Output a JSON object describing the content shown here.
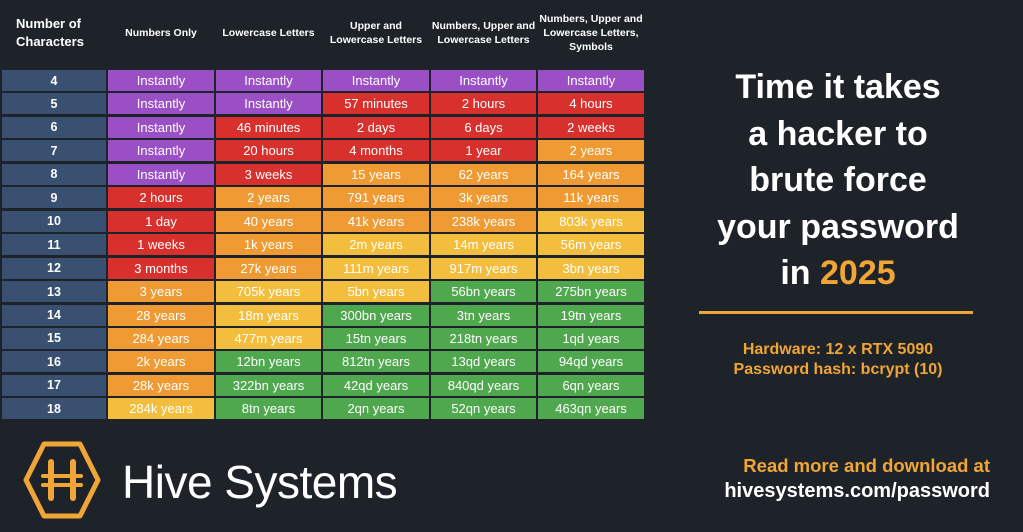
{
  "colors": {
    "purple": "#9b4fc4",
    "red": "#d8312d",
    "orange": "#ef9a32",
    "yellow": "#f3be3d",
    "green": "#4fa84e",
    "length_column": "#3a5070",
    "background": "#1e2329",
    "accent": "#f0a536"
  },
  "chart_data": {
    "type": "table",
    "columns": [
      "Number of Characters",
      "Numbers Only",
      "Lowercase Letters",
      "Upper and Lowercase Letters",
      "Numbers, Upper and Lowercase Letters",
      "Numbers, Upper and Lowercase Letters, Symbols"
    ],
    "rows": [
      {
        "length": "4",
        "values": [
          "Instantly",
          "Instantly",
          "Instantly",
          "Instantly",
          "Instantly"
        ],
        "colors": [
          "purple",
          "purple",
          "purple",
          "purple",
          "purple"
        ]
      },
      {
        "length": "5",
        "values": [
          "Instantly",
          "Instantly",
          "57 minutes",
          "2 hours",
          "4 hours"
        ],
        "colors": [
          "purple",
          "purple",
          "red",
          "red",
          "red"
        ]
      },
      {
        "length": "6",
        "values": [
          "Instantly",
          "46 minutes",
          "2 days",
          "6 days",
          "2 weeks"
        ],
        "colors": [
          "purple",
          "red",
          "red",
          "red",
          "red"
        ]
      },
      {
        "length": "7",
        "values": [
          "Instantly",
          "20 hours",
          "4 months",
          "1 year",
          "2 years"
        ],
        "colors": [
          "purple",
          "red",
          "red",
          "red",
          "orange"
        ]
      },
      {
        "length": "8",
        "values": [
          "Instantly",
          "3 weeks",
          "15 years",
          "62 years",
          "164 years"
        ],
        "colors": [
          "purple",
          "red",
          "orange",
          "orange",
          "orange"
        ]
      },
      {
        "length": "9",
        "values": [
          "2 hours",
          "2 years",
          "791 years",
          "3k years",
          "11k years"
        ],
        "colors": [
          "red",
          "orange",
          "orange",
          "orange",
          "orange"
        ]
      },
      {
        "length": "10",
        "values": [
          "1 day",
          "40 years",
          "41k years",
          "238k years",
          "803k years"
        ],
        "colors": [
          "red",
          "orange",
          "orange",
          "orange",
          "yellow"
        ]
      },
      {
        "length": "11",
        "values": [
          "1 weeks",
          "1k years",
          "2m years",
          "14m years",
          "56m years"
        ],
        "colors": [
          "red",
          "orange",
          "yellow",
          "yellow",
          "yellow"
        ]
      },
      {
        "length": "12",
        "values": [
          "3 months",
          "27k years",
          "111m years",
          "917m years",
          "3bn years"
        ],
        "colors": [
          "red",
          "orange",
          "yellow",
          "yellow",
          "yellow"
        ]
      },
      {
        "length": "13",
        "values": [
          "3 years",
          "705k years",
          "5bn years",
          "56bn years",
          "275bn years"
        ],
        "colors": [
          "orange",
          "yellow",
          "yellow",
          "green",
          "green"
        ]
      },
      {
        "length": "14",
        "values": [
          "28 years",
          "18m years",
          "300bn years",
          "3tn years",
          "19tn years"
        ],
        "colors": [
          "orange",
          "yellow",
          "green",
          "green",
          "green"
        ]
      },
      {
        "length": "15",
        "values": [
          "284 years",
          "477m years",
          "15tn years",
          "218tn years",
          "1qd years"
        ],
        "colors": [
          "orange",
          "yellow",
          "green",
          "green",
          "green"
        ]
      },
      {
        "length": "16",
        "values": [
          "2k years",
          "12bn years",
          "812tn years",
          "13qd years",
          "94qd years"
        ],
        "colors": [
          "orange",
          "green",
          "green",
          "green",
          "green"
        ]
      },
      {
        "length": "17",
        "values": [
          "28k years",
          "322bn years",
          "42qd years",
          "840qd years",
          "6qn years"
        ],
        "colors": [
          "orange",
          "green",
          "green",
          "green",
          "green"
        ]
      },
      {
        "length": "18",
        "values": [
          "284k years",
          "8tn years",
          "2qn years",
          "52qn years",
          "463qn years"
        ],
        "colors": [
          "yellow",
          "green",
          "green",
          "green",
          "green"
        ]
      }
    ]
  },
  "headline": {
    "line1": "Time it takes",
    "line2": "a hacker to",
    "line3": "brute force",
    "line4": "your password",
    "line5_prefix": "in ",
    "year": "2025"
  },
  "hardware": {
    "line1": "Hardware: 12 x RTX 5090",
    "line2": "Password hash: bcrypt (10)"
  },
  "brand": {
    "name": "Hive Systems",
    "logo_icon": "hive-h-hexagon-icon"
  },
  "cta": {
    "line1": "Read more and download at",
    "line2": "hivesystems.com/password"
  }
}
